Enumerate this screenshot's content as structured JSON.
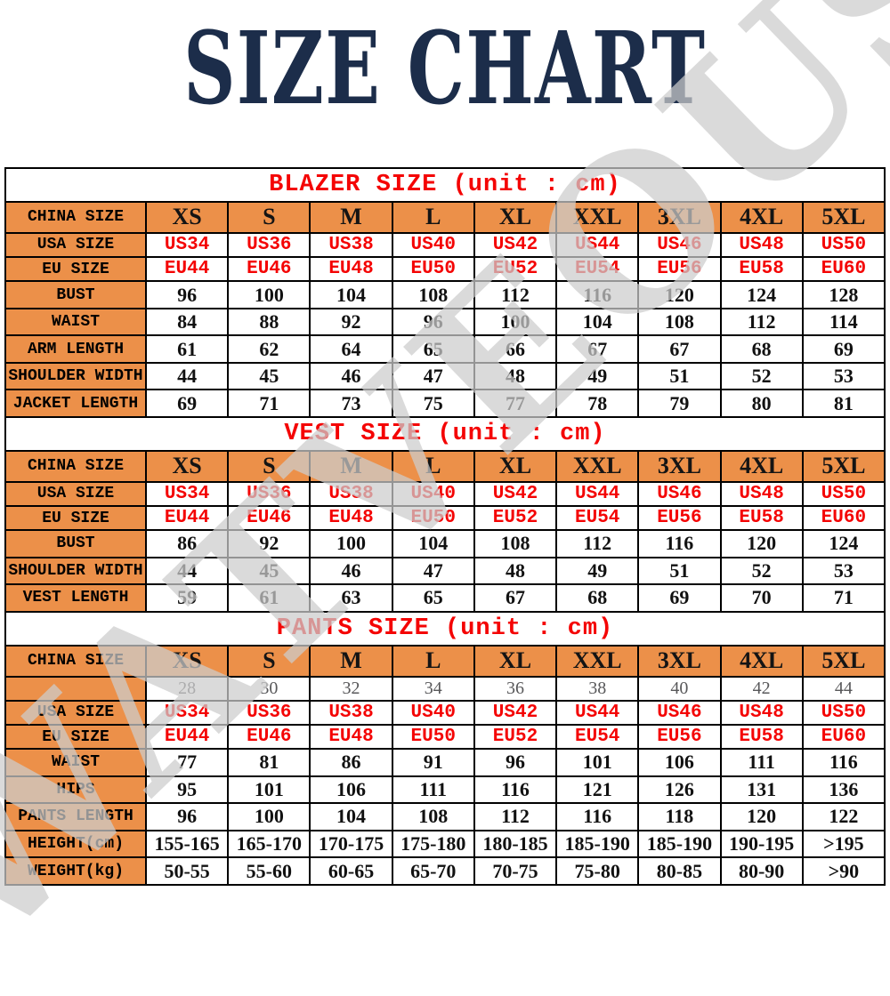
{
  "page_title": "SIZE CHART",
  "watermark_text": "WATVEOUS",
  "colors": {
    "title_navy": "#1c2d4a",
    "accent_orange": "#ec9049",
    "accent_red": "#f40404",
    "gray_values": "#58585a",
    "watermark_gray": "#cdcdcd",
    "border_black": "#000000"
  },
  "size_headers": [
    "XS",
    "S",
    "M",
    "L",
    "XL",
    "XXL",
    "3XL",
    "4XL",
    "5XL"
  ],
  "tables": [
    {
      "id": "blazer",
      "title": "BLAZER SIZE (unit : cm)",
      "rows": [
        {
          "label": "CHINA SIZE",
          "type": "sizes",
          "values": [
            "XS",
            "S",
            "M",
            "L",
            "XL",
            "XXL",
            "3XL",
            "4XL",
            "5XL"
          ]
        },
        {
          "label": "USA SIZE",
          "type": "red",
          "values": [
            "US34",
            "US36",
            "US38",
            "US40",
            "US42",
            "US44",
            "US46",
            "US48",
            "US50"
          ]
        },
        {
          "label": "EU SIZE",
          "type": "red",
          "values": [
            "EU44",
            "EU46",
            "EU48",
            "EU50",
            "EU52",
            "EU54",
            "EU56",
            "EU58",
            "EU60"
          ]
        },
        {
          "label": "BUST",
          "type": "num",
          "values": [
            "96",
            "100",
            "104",
            "108",
            "112",
            "116",
            "120",
            "124",
            "128"
          ]
        },
        {
          "label": "WAIST",
          "type": "num",
          "values": [
            "84",
            "88",
            "92",
            "96",
            "100",
            "104",
            "108",
            "112",
            "114"
          ]
        },
        {
          "label": "ARM LENGTH",
          "type": "num",
          "values": [
            "61",
            "62",
            "64",
            "65",
            "66",
            "67",
            "67",
            "68",
            "69"
          ]
        },
        {
          "label": "SHOULDER WIDTH",
          "type": "num",
          "values": [
            "44",
            "45",
            "46",
            "47",
            "48",
            "49",
            "51",
            "52",
            "53"
          ]
        },
        {
          "label": "JACKET LENGTH",
          "type": "num",
          "values": [
            "69",
            "71",
            "73",
            "75",
            "77",
            "78",
            "79",
            "80",
            "81"
          ]
        }
      ]
    },
    {
      "id": "vest",
      "title": "VEST SIZE (unit : cm)",
      "rows": [
        {
          "label": "CHINA SIZE",
          "type": "sizes",
          "values": [
            "XS",
            "S",
            "M",
            "L",
            "XL",
            "XXL",
            "3XL",
            "4XL",
            "5XL"
          ]
        },
        {
          "label": "USA SIZE",
          "type": "red",
          "values": [
            "US34",
            "US36",
            "US38",
            "US40",
            "US42",
            "US44",
            "US46",
            "US48",
            "US50"
          ]
        },
        {
          "label": "EU SIZE",
          "type": "red",
          "values": [
            "EU44",
            "EU46",
            "EU48",
            "EU50",
            "EU52",
            "EU54",
            "EU56",
            "EU58",
            "EU60"
          ]
        },
        {
          "label": "BUST",
          "type": "num",
          "values": [
            "86",
            "92",
            "100",
            "104",
            "108",
            "112",
            "116",
            "120",
            "124"
          ]
        },
        {
          "label": "SHOULDER WIDTH",
          "type": "num",
          "values": [
            "44",
            "45",
            "46",
            "47",
            "48",
            "49",
            "51",
            "52",
            "53"
          ]
        },
        {
          "label": "VEST LENGTH",
          "type": "num",
          "values": [
            "59",
            "61",
            "63",
            "65",
            "67",
            "68",
            "69",
            "70",
            "71"
          ]
        }
      ]
    },
    {
      "id": "pants",
      "title": "PANTS SIZE (unit : cm)",
      "rows": [
        {
          "label": "CHINA SIZE",
          "type": "sizes",
          "values": [
            "XS",
            "S",
            "M",
            "L",
            "XL",
            "XXL",
            "3XL",
            "4XL",
            "5XL"
          ]
        },
        {
          "label": "",
          "type": "gray",
          "values": [
            "28",
            "30",
            "32",
            "34",
            "36",
            "38",
            "40",
            "42",
            "44"
          ]
        },
        {
          "label": "USA SIZE",
          "type": "red",
          "values": [
            "US34",
            "US36",
            "US38",
            "US40",
            "US42",
            "US44",
            "US46",
            "US48",
            "US50"
          ]
        },
        {
          "label": "EU SIZE",
          "type": "red",
          "values": [
            "EU44",
            "EU46",
            "EU48",
            "EU50",
            "EU52",
            "EU54",
            "EU56",
            "EU58",
            "EU60"
          ]
        },
        {
          "label": "WAIST",
          "type": "num",
          "values": [
            "77",
            "81",
            "86",
            "91",
            "96",
            "101",
            "106",
            "111",
            "116"
          ]
        },
        {
          "label": "HIPS",
          "type": "num",
          "values": [
            "95",
            "101",
            "106",
            "111",
            "116",
            "121",
            "126",
            "131",
            "136"
          ]
        },
        {
          "label": "PANTS LENGTH",
          "type": "num",
          "values": [
            "96",
            "100",
            "104",
            "108",
            "112",
            "116",
            "118",
            "120",
            "122"
          ]
        },
        {
          "label": "HEIGHT(cm)",
          "type": "num",
          "values": [
            "155-165",
            "165-170",
            "170-175",
            "175-180",
            "180-185",
            "185-190",
            "185-190",
            "190-195",
            ">195"
          ]
        },
        {
          "label": "WEIGHT(kg)",
          "type": "num",
          "values": [
            "50-55",
            "55-60",
            "60-65",
            "65-70",
            "70-75",
            "75-80",
            "80-85",
            "80-90",
            ">90"
          ]
        }
      ]
    }
  ]
}
